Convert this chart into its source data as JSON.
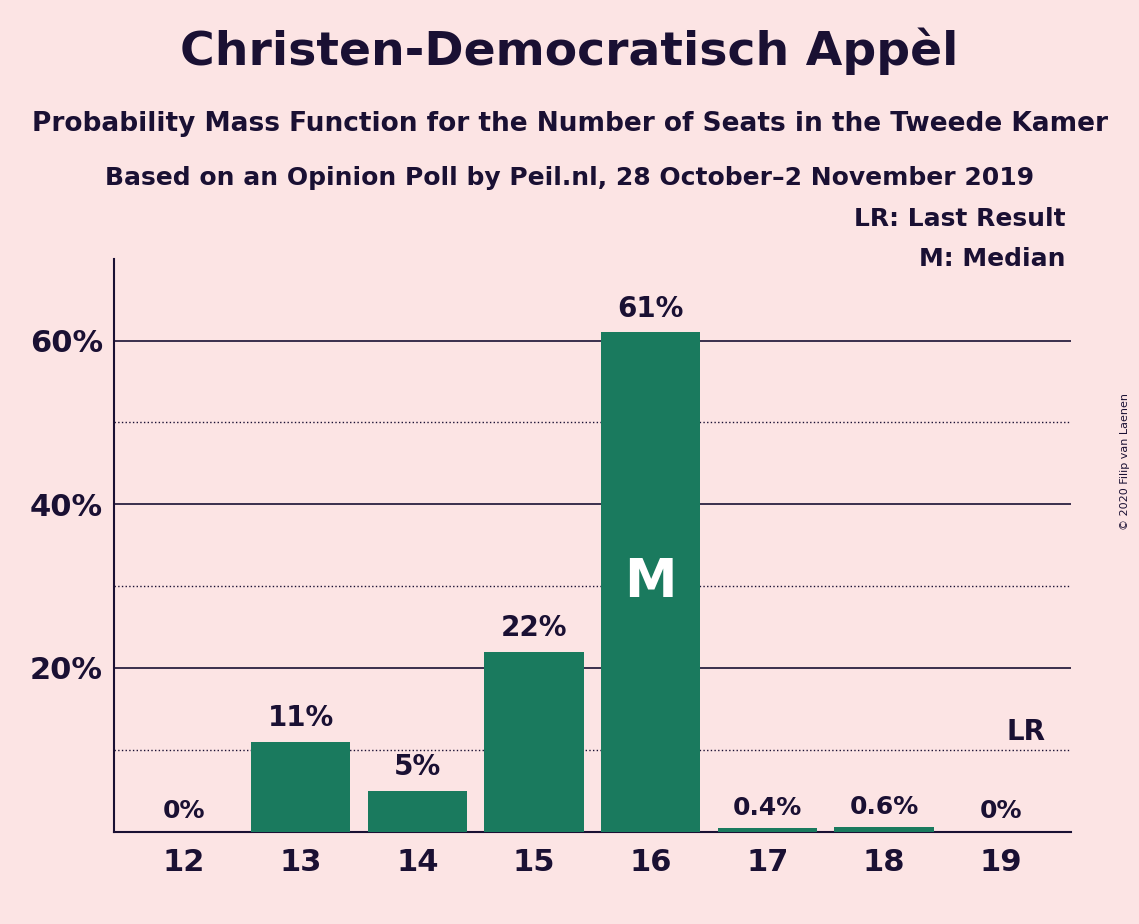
{
  "title": "Christen-Democratisch Appèl",
  "subtitle1": "Probability Mass Function for the Number of Seats in the Tweede Kamer",
  "subtitle2": "Based on an Opinion Poll by Peil.nl, 28 October–2 November 2019",
  "copyright": "© 2020 Filip van Laenen",
  "categories": [
    12,
    13,
    14,
    15,
    16,
    17,
    18,
    19
  ],
  "values": [
    0.0,
    11.0,
    5.0,
    22.0,
    61.0,
    0.4,
    0.6,
    0.0
  ],
  "labels": [
    "0%",
    "11%",
    "5%",
    "22%",
    "61%",
    "0.4%",
    "0.6%",
    "0%"
  ],
  "bar_color": "#1a7a5e",
  "background_color": "#fce4e4",
  "text_color": "#1a1033",
  "median_seat": 16,
  "lr_seat": 19,
  "ylim": [
    0,
    70
  ],
  "solid_yticks": [
    20,
    40,
    60
  ],
  "dotted_yticks": [
    10,
    30,
    50
  ],
  "legend_lr": "LR: Last Result",
  "legend_m": "M: Median"
}
